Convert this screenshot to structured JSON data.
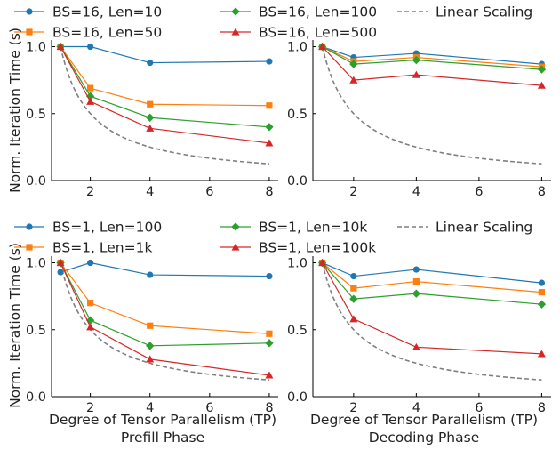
{
  "figure": {
    "ylabel": "Norm. Iteration Time (s)",
    "xlabel": "Degree of Tensor Parallelism (TP)"
  },
  "legends": [
    {
      "entries": [
        "BS=16, Len=10",
        "BS=16, Len=50",
        "BS=16, Len=100",
        "BS=16, Len=500",
        "Linear Scaling"
      ]
    },
    {
      "entries": [
        "BS=1, Len=100",
        "BS=1, Len=1k",
        "BS=1, Len=10k",
        "BS=1, Len=100k",
        "Linear Scaling"
      ]
    }
  ],
  "series_colors": [
    "#1f77b4",
    "#ff7f0e",
    "#2ca02c",
    "#d62728",
    "#7f7f7f"
  ],
  "chart_data": [
    {
      "type": "line",
      "xlabel": "Degree of Tensor Parallelism (TP)",
      "subtitle": "",
      "ylabel": "Norm. Iteration Time (s)",
      "x": [
        1,
        2,
        4,
        8
      ],
      "xticks": [
        2,
        4,
        6,
        8
      ],
      "yticks": [
        0.0,
        0.5,
        1.0
      ],
      "ytick_labels": [
        "0.0",
        "0.5",
        "1.0"
      ],
      "xlim": [
        0.7,
        8.3
      ],
      "ylim": [
        0,
        1.05
      ],
      "series": [
        {
          "name": "BS=16, Len=10",
          "marker": "circle",
          "values": [
            1.0,
            1.0,
            0.88,
            0.89
          ]
        },
        {
          "name": "BS=16, Len=50",
          "marker": "square",
          "values": [
            1.0,
            0.69,
            0.57,
            0.56
          ]
        },
        {
          "name": "BS=16, Len=100",
          "marker": "diamond",
          "values": [
            1.0,
            0.63,
            0.47,
            0.4
          ]
        },
        {
          "name": "BS=16, Len=500",
          "marker": "triangle",
          "values": [
            1.0,
            0.59,
            0.39,
            0.28
          ]
        }
      ],
      "linear_scaling": {
        "name": "Linear Scaling",
        "x": [
          1,
          8
        ],
        "formula": "1/x"
      }
    },
    {
      "type": "line",
      "xlabel": "",
      "subtitle": "",
      "ylabel": "",
      "x": [
        1,
        2,
        4,
        8
      ],
      "xticks": [
        2,
        4,
        6,
        8
      ],
      "yticks": [
        0.0,
        0.5,
        1.0
      ],
      "ytick_labels": [
        "0.0",
        "0.5",
        "1.0"
      ],
      "xlim": [
        0.7,
        8.3
      ],
      "ylim": [
        0,
        1.05
      ],
      "series": [
        {
          "name": "BS=16, Len=10",
          "marker": "circle",
          "values": [
            1.0,
            0.92,
            0.95,
            0.87
          ]
        },
        {
          "name": "BS=16, Len=50",
          "marker": "square",
          "values": [
            1.0,
            0.89,
            0.92,
            0.85
          ]
        },
        {
          "name": "BS=16, Len=100",
          "marker": "diamond",
          "values": [
            1.0,
            0.87,
            0.9,
            0.83
          ]
        },
        {
          "name": "BS=16, Len=500",
          "marker": "triangle",
          "values": [
            1.0,
            0.75,
            0.79,
            0.71
          ]
        }
      ],
      "linear_scaling": {
        "name": "Linear Scaling",
        "x": [
          1,
          8
        ],
        "formula": "1/x"
      }
    },
    {
      "type": "line",
      "xlabel": "Degree of Tensor Parallelism (TP)",
      "subtitle": "Prefill Phase",
      "ylabel": "Norm. Iteration Time (s)",
      "x": [
        1,
        2,
        4,
        8
      ],
      "xticks": [
        2,
        4,
        6,
        8
      ],
      "yticks": [
        0.0,
        0.5,
        1.0
      ],
      "ytick_labels": [
        "0.0",
        "0.5",
        "1.0"
      ],
      "xlim": [
        0.7,
        8.3
      ],
      "ylim": [
        0,
        1.05
      ],
      "series": [
        {
          "name": "BS=1, Len=100",
          "marker": "circle",
          "values": [
            0.93,
            1.0,
            0.91,
            0.9
          ]
        },
        {
          "name": "BS=1, Len=1k",
          "marker": "square",
          "values": [
            1.0,
            0.7,
            0.53,
            0.47
          ]
        },
        {
          "name": "BS=1, Len=10k",
          "marker": "diamond",
          "values": [
            1.0,
            0.57,
            0.38,
            0.4
          ]
        },
        {
          "name": "BS=1, Len=100k",
          "marker": "triangle",
          "values": [
            1.0,
            0.52,
            0.28,
            0.16
          ]
        }
      ],
      "linear_scaling": {
        "name": "Linear Scaling",
        "x": [
          1,
          8
        ],
        "formula": "1/x"
      }
    },
    {
      "type": "line",
      "xlabel": "Degree of Tensor Parallelism (TP)",
      "subtitle": "Decoding Phase",
      "ylabel": "",
      "x": [
        1,
        2,
        4,
        8
      ],
      "xticks": [
        2,
        4,
        6,
        8
      ],
      "yticks": [
        0.0,
        0.5,
        1.0
      ],
      "ytick_labels": [
        "0.0",
        "0.5",
        "1.0"
      ],
      "xlim": [
        0.7,
        8.3
      ],
      "ylim": [
        0,
        1.05
      ],
      "series": [
        {
          "name": "BS=1, Len=100",
          "marker": "circle",
          "values": [
            1.0,
            0.9,
            0.95,
            0.85
          ]
        },
        {
          "name": "BS=1, Len=1k",
          "marker": "square",
          "values": [
            1.0,
            0.81,
            0.86,
            0.78
          ]
        },
        {
          "name": "BS=1, Len=10k",
          "marker": "diamond",
          "values": [
            1.0,
            0.73,
            0.77,
            0.69
          ]
        },
        {
          "name": "BS=1, Len=100k",
          "marker": "triangle",
          "values": [
            1.0,
            0.58,
            0.37,
            0.32
          ]
        }
      ],
      "linear_scaling": {
        "name": "Linear Scaling",
        "x": [
          1,
          8
        ],
        "formula": "1/x"
      }
    }
  ]
}
